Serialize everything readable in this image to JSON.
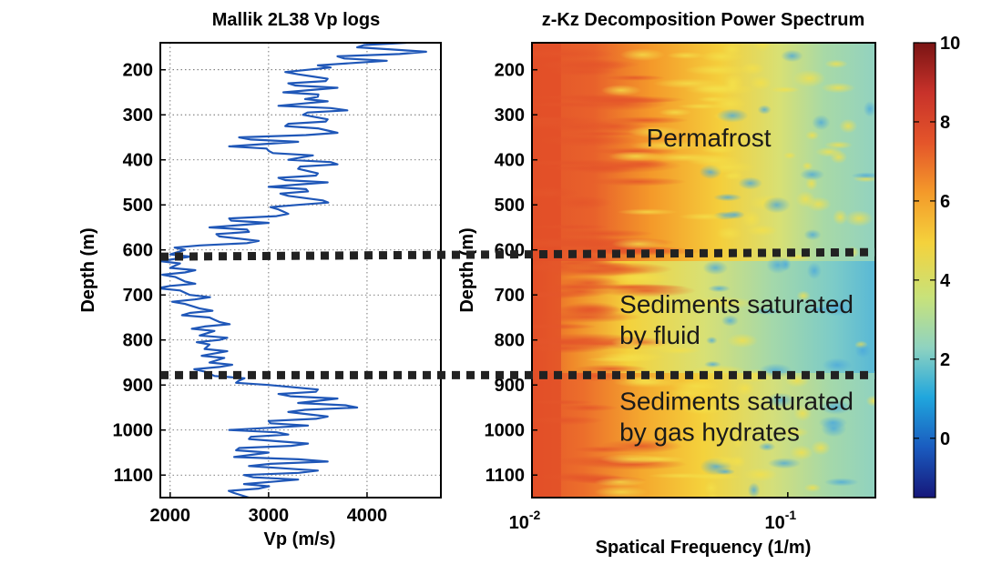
{
  "chart_data": [
    {
      "type": "line",
      "title": "Mallik 2L38 Vp logs",
      "xlabel": "Vp (m/s)",
      "ylabel": "Depth (m)",
      "xlim": [
        1900,
        4750
      ],
      "ylim": [
        1150,
        140
      ],
      "y_reversed": true,
      "grid": true,
      "x_ticks": [
        2000,
        3000,
        4000
      ],
      "y_ticks": [
        200,
        300,
        400,
        500,
        600,
        700,
        800,
        900,
        1000,
        1100
      ],
      "series": [
        {
          "color": "#1f57b8",
          "depth": [
            140,
            150,
            160,
            170,
            180,
            190,
            200,
            210,
            220,
            230,
            240,
            250,
            260,
            270,
            280,
            290,
            300,
            310,
            320,
            330,
            340,
            350,
            360,
            370,
            380,
            390,
            400,
            410,
            420,
            430,
            440,
            450,
            460,
            470,
            480,
            490,
            500,
            510,
            520,
            530,
            540,
            550,
            560,
            570,
            580,
            590,
            600,
            610,
            620,
            630,
            640,
            650,
            660,
            670,
            680,
            690,
            700,
            710,
            720,
            730,
            740,
            750,
            760,
            770,
            780,
            790,
            800,
            810,
            820,
            830,
            840,
            850,
            860,
            870,
            880,
            890,
            900,
            910,
            920,
            930,
            940,
            950,
            960,
            970,
            980,
            990,
            1000,
            1010,
            1020,
            1030,
            1040,
            1050,
            1060,
            1070,
            1080,
            1090,
            1100,
            1110,
            1120,
            1130,
            1140,
            1150
          ],
          "vp": [
            4400,
            3900,
            4600,
            3700,
            4200,
            3500,
            3400,
            3300,
            3600,
            3200,
            3700,
            3150,
            3500,
            3600,
            3100,
            3800,
            3350,
            3600,
            3200,
            3500,
            3700,
            2700,
            3300,
            2600,
            3000,
            3450,
            3200,
            3700,
            3300,
            3500,
            3100,
            3600,
            3000,
            3400,
            3200,
            3550,
            3300,
            3100,
            3200,
            2600,
            3000,
            2400,
            2800,
            2500,
            2900,
            2300,
            2150,
            2000,
            2050,
            2100,
            2000,
            2150,
            2050,
            2150,
            2000,
            2100,
            2200,
            2250,
            2150,
            2300,
            2200,
            2400,
            2500,
            2350,
            2450,
            2300,
            2500,
            2400,
            2350,
            2450,
            2550,
            2400,
            2500,
            2350,
            2450,
            2700,
            3000,
            3500,
            3100,
            3700,
            3300,
            3900,
            3200,
            3600,
            3000,
            3400,
            2600,
            3200,
            2800,
            3400,
            2700,
            3000,
            2650,
            3600,
            2800,
            3500,
            2750,
            3300,
            2750,
            2900,
            2650,
            2800
          ]
        }
      ]
    },
    {
      "type": "heatmap",
      "title": "z-Kz Decomposition Power Spectrum",
      "xlabel": "Spatical Frequency (1/m)",
      "ylabel": "Depth (m)",
      "x_scale": "log",
      "xlim": [
        0.01,
        0.22
      ],
      "ylim": [
        1150,
        140
      ],
      "y_reversed": true,
      "x_tick_labels": [
        {
          "value": 0.01,
          "base": "10",
          "exp": "-2"
        },
        {
          "value": 0.1,
          "base": "10",
          "exp": "-1"
        }
      ],
      "y_ticks": [
        200,
        300,
        400,
        500,
        600,
        700,
        800,
        900,
        1000,
        1100
      ],
      "colorbar": {
        "min": -1.5,
        "max": 10,
        "ticks": [
          0,
          2,
          4,
          6,
          8,
          10
        ],
        "colormap": "jet",
        "colors": [
          "#16177a",
          "#1a5bbf",
          "#20a6dd",
          "#8fd3c0",
          "#c8e27a",
          "#f4d23c",
          "#f49a2a",
          "#e4552a",
          "#c8322a",
          "#7a1414"
        ]
      },
      "annotations": [
        {
          "text": "Permafrost",
          "depth": 370,
          "freq": 0.028
        },
        {
          "text": "Sediments saturated\nby fluid",
          "depth": 740,
          "freq": 0.022
        },
        {
          "text": "Sediments saturated\nby gas hydrates",
          "depth": 955,
          "freq": 0.022
        }
      ]
    }
  ],
  "horizons": [
    {
      "depth_left": 615,
      "depth_right": 605
    },
    {
      "depth_left": 878,
      "depth_right": 878
    }
  ]
}
